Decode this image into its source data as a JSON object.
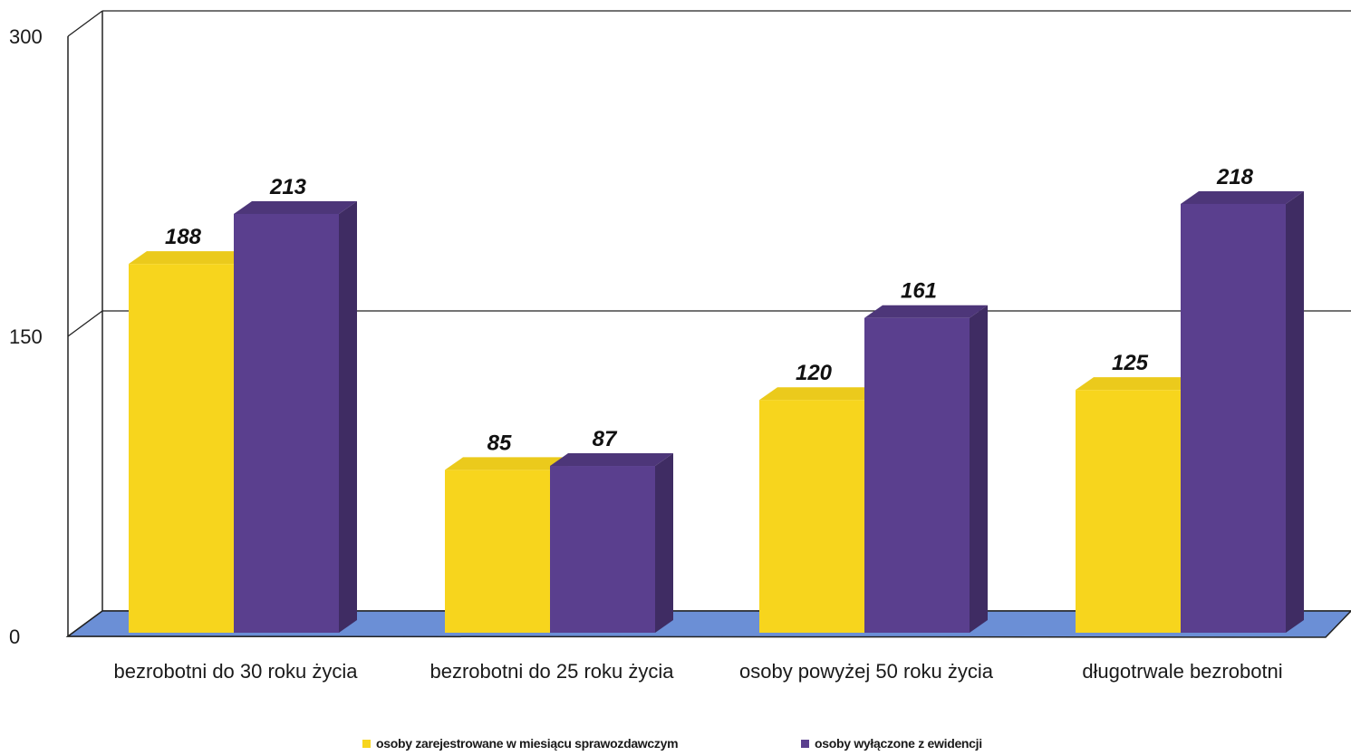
{
  "chart_data": {
    "type": "bar",
    "title": "",
    "xlabel": "",
    "ylabel": "",
    "ylim": [
      0,
      300
    ],
    "yticks": [
      0,
      150,
      300
    ],
    "categories": [
      "bezrobotni do 30 roku życia",
      "bezrobotni do 25 roku życia",
      "osoby powyżej 50 roku życia",
      "długotrwale bezrobotni"
    ],
    "series": [
      {
        "name": "osoby zarejestrowane w miesiącu sprawozdawczym",
        "color": "#f7d51d",
        "values": [
          188,
          85,
          120,
          125
        ]
      },
      {
        "name": "osoby wyłączone z ewidencji",
        "color": "#5a3f8e",
        "values": [
          213,
          87,
          161,
          218
        ]
      }
    ],
    "grid": true,
    "legend_position": "bottom",
    "floor_color": "#6b8fd6",
    "three_d": true
  }
}
